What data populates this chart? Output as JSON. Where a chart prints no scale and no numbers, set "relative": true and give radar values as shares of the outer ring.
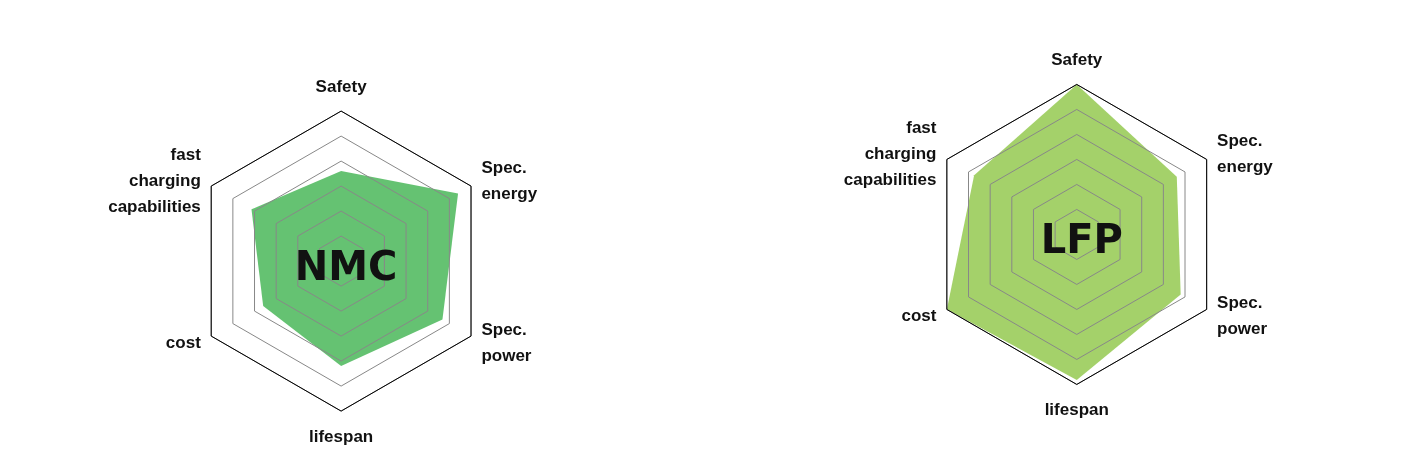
{
  "chart_data": [
    {
      "type": "radar",
      "title": "NMC",
      "relative": true,
      "categories": [
        "Safety",
        "Spec. energy",
        "Spec. power",
        "lifespan",
        "cost",
        "fast charging capabilities"
      ],
      "series": [
        {
          "color": "#5dbf6a",
          "values": [
            0.6,
            0.9,
            0.78,
            0.7,
            0.6,
            0.69
          ]
        }
      ]
    },
    {
      "type": "radar",
      "title": "LFP",
      "relative": true,
      "categories": [
        "Safety",
        "Spec. energy",
        "Spec. power",
        "lifespan",
        "cost",
        "fast charging capabilities"
      ],
      "series": [
        {
          "color": "#9fcf62",
          "values": [
            1.0,
            0.77,
            0.8,
            0.97,
            1.0,
            0.79
          ]
        }
      ]
    }
  ]
}
